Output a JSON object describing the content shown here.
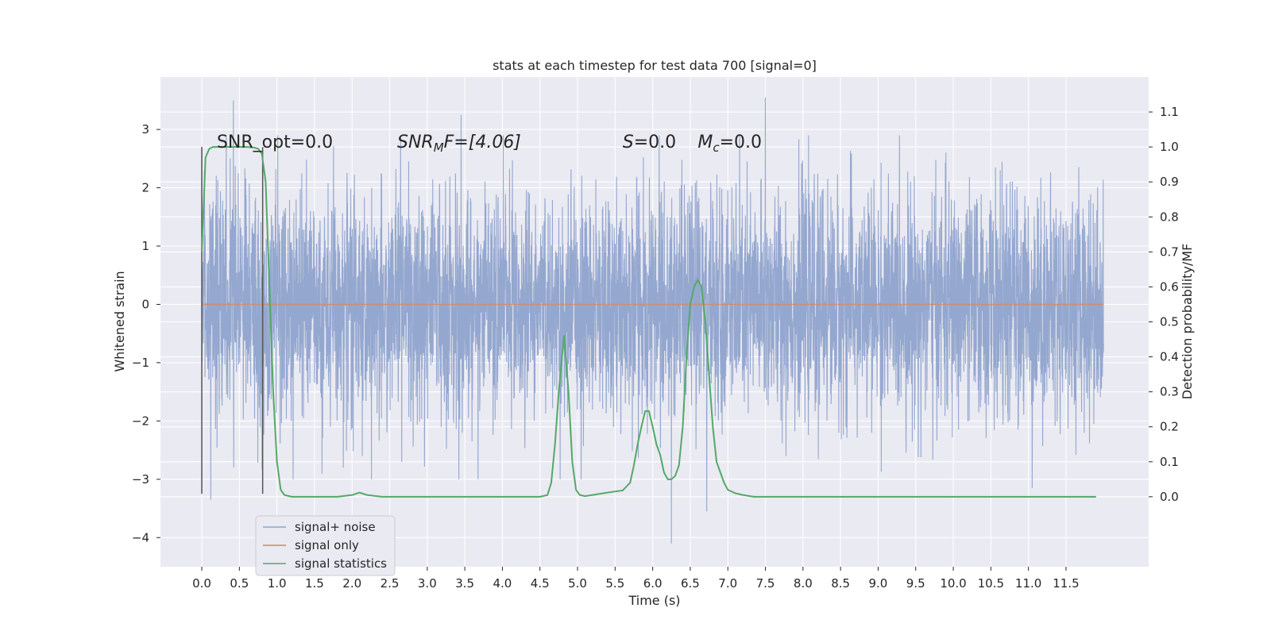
{
  "chart_data": {
    "type": "line",
    "title": "stats at each timestep for test data 700 [signal=0]",
    "xlabel": "Time (s)",
    "ylabel": "Whitened strain",
    "y2label": "Detection probability/MF",
    "xlim": [
      -0.55,
      12.6
    ],
    "ylim": [
      -4.5,
      3.9
    ],
    "y2lim": [
      -0.2,
      1.2
    ],
    "x_ticks": [
      0.0,
      0.5,
      1.0,
      1.5,
      2.0,
      2.5,
      3.0,
      3.5,
      4.0,
      4.5,
      5.0,
      5.5,
      6.0,
      6.5,
      7.0,
      7.5,
      8.0,
      8.5,
      9.0,
      9.5,
      10.0,
      10.5,
      11.0,
      11.5
    ],
    "x_tick_labels": [
      "0.0",
      "0.5",
      "1.0",
      "1.5",
      "2.0",
      "2.5",
      "3.0",
      "3.5",
      "4.0",
      "4.5",
      "5.0",
      "5.5",
      "6.0",
      "6.5",
      "7.0",
      "7.5",
      "8.0",
      "8.5",
      "9.0",
      "9.5",
      "10.0",
      "10.5",
      "11.0",
      "11.5"
    ],
    "y_ticks": [
      3,
      2,
      1,
      0,
      -1,
      -2,
      -3,
      -4
    ],
    "y_tick_labels": [
      "3",
      "2",
      "1",
      "0",
      "−1",
      "−2",
      "−3",
      "−4"
    ],
    "y2_ticks": [
      1.1,
      1.0,
      0.9,
      0.8,
      0.7,
      0.6,
      0.5,
      0.4,
      0.3,
      0.2,
      0.1,
      0.0
    ],
    "y2_tick_labels": [
      "1.1",
      "1.0",
      "0.9",
      "0.8",
      "0.7",
      "0.6",
      "0.5",
      "0.4",
      "0.3",
      "0.2",
      "0.1",
      "0.0"
    ],
    "grid": true,
    "legend_position": "lower-left",
    "series": [
      {
        "name": "signal+ noise",
        "axis": "left",
        "color": "#8fa3cc",
        "t_range": [
          0.0,
          12.0
        ],
        "amplitude_std": 0.95,
        "extremes": [
          {
            "x": 0.42,
            "y": 3.5
          },
          {
            "x": 0.12,
            "y": -3.35
          },
          {
            "x": 3.45,
            "y": 3.25
          },
          {
            "x": 6.25,
            "y": -4.1
          },
          {
            "x": 6.72,
            "y": -3.55
          },
          {
            "x": 7.5,
            "y": 3.55
          },
          {
            "x": 11.05,
            "y": -3.15
          },
          {
            "x": 1.6,
            "y": -2.9
          }
        ]
      },
      {
        "name": "signal only",
        "axis": "left",
        "color": "#dd8452",
        "x": [
          0.0,
          12.0
        ],
        "y": [
          0.0,
          0.0
        ]
      },
      {
        "name": "signal statistics",
        "axis": "right",
        "color": "#55a868",
        "x": [
          0.0,
          0.05,
          0.1,
          0.15,
          0.2,
          0.3,
          0.4,
          0.5,
          0.6,
          0.7,
          0.75,
          0.8,
          0.85,
          0.9,
          0.95,
          1.0,
          1.05,
          1.1,
          1.2,
          1.5,
          1.8,
          2.0,
          2.1,
          2.2,
          2.4,
          3.0,
          4.0,
          4.5,
          4.6,
          4.65,
          4.7,
          4.75,
          4.82,
          4.88,
          4.93,
          4.98,
          5.03,
          5.1,
          5.2,
          5.4,
          5.6,
          5.7,
          5.75,
          5.8,
          5.85,
          5.9,
          5.95,
          6.0,
          6.05,
          6.1,
          6.15,
          6.2,
          6.25,
          6.3,
          6.35,
          6.4,
          6.45,
          6.5,
          6.55,
          6.6,
          6.65,
          6.7,
          6.75,
          6.8,
          6.85,
          6.9,
          6.95,
          7.0,
          7.05,
          7.1,
          7.2,
          7.35,
          7.5,
          8.0,
          9.0,
          10.0,
          11.0,
          11.5,
          11.9
        ],
        "y": [
          0.7,
          0.97,
          0.995,
          1.0,
          1.0,
          1.0,
          1.0,
          1.0,
          1.0,
          0.998,
          0.995,
          0.98,
          0.9,
          0.6,
          0.3,
          0.1,
          0.02,
          0.005,
          0.0,
          0.0,
          0.0,
          0.005,
          0.012,
          0.005,
          0.0,
          0.0,
          0.0,
          0.0,
          0.005,
          0.04,
          0.15,
          0.3,
          0.46,
          0.3,
          0.1,
          0.02,
          0.005,
          0.002,
          0.005,
          0.012,
          0.018,
          0.04,
          0.09,
          0.15,
          0.2,
          0.245,
          0.245,
          0.2,
          0.15,
          0.12,
          0.07,
          0.05,
          0.05,
          0.06,
          0.09,
          0.2,
          0.4,
          0.55,
          0.6,
          0.62,
          0.6,
          0.5,
          0.35,
          0.2,
          0.1,
          0.07,
          0.04,
          0.02,
          0.015,
          0.01,
          0.005,
          0.0,
          0.0,
          0.0,
          0.0,
          0.0,
          0.0,
          0.0,
          0.0
        ]
      }
    ],
    "vertical_markers": [
      {
        "x": 0.0,
        "y_range": [
          -3.25,
          2.7
        ],
        "color": "#555555"
      },
      {
        "x": 0.81,
        "y_range": [
          -3.25,
          2.7
        ],
        "color": "#555555"
      }
    ],
    "annotations": [
      {
        "text": "SNR_opt=0.0",
        "x": 0.2,
        "y": 2.8,
        "italic": false
      },
      {
        "x": 2.6,
        "y": 2.8,
        "italic": true,
        "parts": [
          {
            "text": "SNR",
            "sub": false
          },
          {
            "text": "M",
            "sub": true
          },
          {
            "text": "F=[4.06]",
            "sub": false
          }
        ]
      },
      {
        "x": 5.6,
        "y": 2.8,
        "italic": true,
        "parts": [
          {
            "text": "S",
            "sub": false
          },
          {
            "text": "=0.0",
            "sub": false,
            "upright": true
          }
        ]
      },
      {
        "x": 6.6,
        "y": 2.8,
        "italic": true,
        "parts": [
          {
            "text": "M",
            "sub": false
          },
          {
            "text": "c",
            "sub": true
          },
          {
            "text": "=0.0",
            "sub": false,
            "upright": true
          }
        ]
      }
    ],
    "legend": [
      {
        "label": "signal+ noise",
        "color": "#8fa3cc"
      },
      {
        "label": "signal only",
        "color": "#dd8452"
      },
      {
        "label": "signal statistics",
        "color": "#55a868"
      }
    ]
  }
}
